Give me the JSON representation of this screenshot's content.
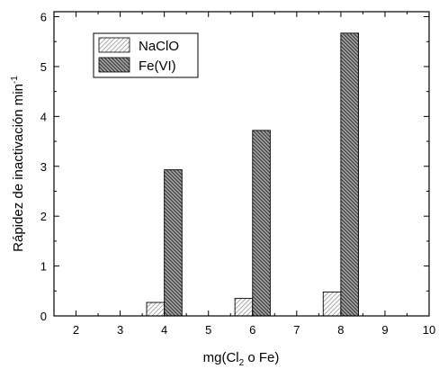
{
  "chart_data": {
    "type": "bar",
    "title": "",
    "xlabel_main": "mg(Cl",
    "xlabel_sub": "2",
    "xlabel_rest": " o Fe)",
    "ylabel_main": "Rápidez de inactivación min",
    "ylabel_sup": "-1",
    "xlim": [
      1.5,
      10
    ],
    "ylim": [
      0,
      6.1
    ],
    "x_ticks": [
      "2",
      "3",
      "4",
      "5",
      "6",
      "7",
      "8",
      "9",
      "10"
    ],
    "y_ticks": [
      "0",
      "1",
      "2",
      "3",
      "4",
      "5",
      "6"
    ],
    "categories": [
      4,
      6,
      8
    ],
    "series": [
      {
        "name": "NaClO",
        "values": [
          0.27,
          0.35,
          0.48
        ],
        "pattern": "light-hatch",
        "color": "#999999"
      },
      {
        "name": "Fe(VI)",
        "values": [
          2.93,
          3.72,
          5.67
        ],
        "pattern": "dense-hatch",
        "color": "#5a5a5a"
      }
    ],
    "grid": false,
    "legend_position": "top-left"
  }
}
